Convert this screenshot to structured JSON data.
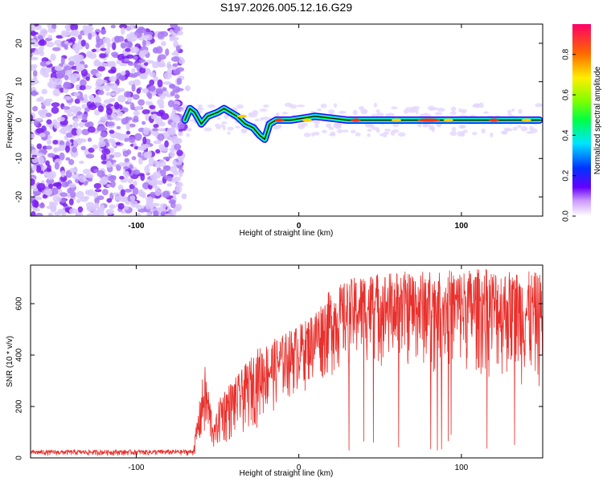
{
  "title": "S197.2026.005.12.16.G29",
  "colors": {
    "snr_line": "#e8302c",
    "scatter": "#8a3cf0",
    "track": "#000000",
    "axis": "#000000"
  },
  "chart_data": [
    {
      "type": "heatmap",
      "name": "spectrogram",
      "title": "S197.2026.005.12.16.G29",
      "xlabel": "Height of straight line (km)",
      "ylabel": "Frequency (Hz)",
      "xlim": [
        -165,
        150
      ],
      "ylim": [
        -25,
        25
      ],
      "xticks": [
        -100,
        0,
        100
      ],
      "yticks": [
        -20,
        -10,
        0,
        10,
        20
      ],
      "noise_region_x": [
        -165,
        -72
      ],
      "track": [
        {
          "x": -70,
          "y": 0
        },
        {
          "x": -67,
          "y": 3
        },
        {
          "x": -64,
          "y": 2
        },
        {
          "x": -60,
          "y": -1
        },
        {
          "x": -56,
          "y": 1
        },
        {
          "x": -50,
          "y": 2
        },
        {
          "x": -46,
          "y": 3
        },
        {
          "x": -42,
          "y": 2
        },
        {
          "x": -38,
          "y": 1
        },
        {
          "x": -33,
          "y": -1
        },
        {
          "x": -28,
          "y": -2
        },
        {
          "x": -24,
          "y": -4
        },
        {
          "x": -21,
          "y": -5
        },
        {
          "x": -18,
          "y": -1
        },
        {
          "x": -14,
          "y": 0
        },
        {
          "x": -5,
          "y": 0
        },
        {
          "x": 10,
          "y": 1
        },
        {
          "x": 30,
          "y": 0
        },
        {
          "x": 60,
          "y": 0
        },
        {
          "x": 100,
          "y": 0
        },
        {
          "x": 148,
          "y": 0
        }
      ],
      "colorbar": {
        "label": "Normalized spectral amplitude",
        "range": [
          0.0,
          0.95
        ],
        "ticks": [
          0.0,
          0.2,
          0.4,
          0.6,
          0.8
        ],
        "tick_labels": [
          "0.0",
          "0.2",
          "0.4",
          "0.6",
          "0.8"
        ]
      }
    },
    {
      "type": "line",
      "name": "snr",
      "xlabel": "Height of straight line (km)",
      "ylabel": "SNR (10 * v/v)",
      "xlim": [
        -165,
        150
      ],
      "ylim": [
        0,
        750
      ],
      "xticks": [
        -100,
        0,
        100
      ],
      "yticks": [
        0,
        200,
        400,
        600
      ],
      "envelope": [
        {
          "x": -165,
          "lo": 8,
          "hi": 30
        },
        {
          "x": -65,
          "lo": 8,
          "hi": 32
        },
        {
          "x": -58,
          "lo": 30,
          "hi": 370
        },
        {
          "x": -52,
          "lo": 20,
          "hi": 130
        },
        {
          "x": -48,
          "lo": 30,
          "hi": 260
        },
        {
          "x": -38,
          "lo": 60,
          "hi": 320
        },
        {
          "x": -25,
          "lo": 120,
          "hi": 430
        },
        {
          "x": -10,
          "lo": 200,
          "hi": 480
        },
        {
          "x": 5,
          "lo": 260,
          "hi": 540
        },
        {
          "x": 20,
          "lo": 300,
          "hi": 660
        },
        {
          "x": 40,
          "lo": 350,
          "hi": 720
        },
        {
          "x": 80,
          "lo": 330,
          "hi": 730
        },
        {
          "x": 120,
          "lo": 300,
          "hi": 740
        },
        {
          "x": 150,
          "lo": 250,
          "hi": 720
        }
      ]
    }
  ]
}
